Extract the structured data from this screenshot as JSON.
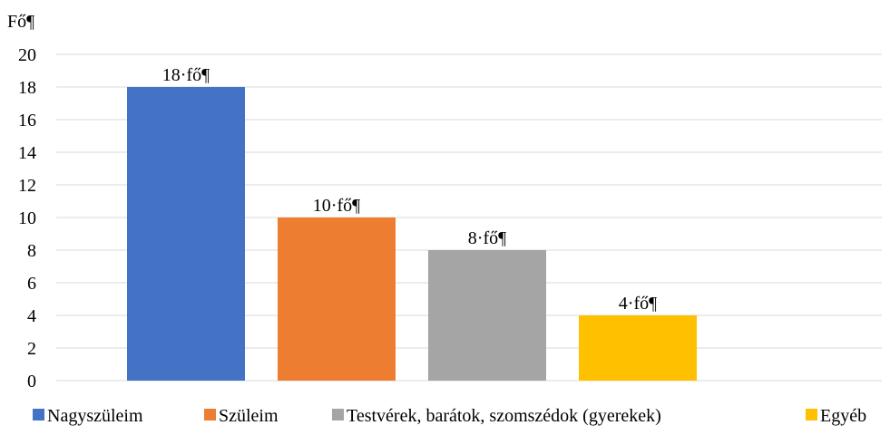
{
  "chart_data": {
    "type": "bar",
    "title": "",
    "ylabel": "Fő¶",
    "xlabel": "",
    "categories": [
      "Nagyszüleim",
      "Szüleim",
      "Testvérek, barátok, szomszédok (gyerekek)",
      "Egyéb"
    ],
    "values": [
      18,
      10,
      8,
      4
    ],
    "data_labels": [
      "18·fő¶",
      "10·fő¶",
      "8·fő¶",
      "4·fő¶"
    ],
    "colors": [
      "#4472C4",
      "#ED7D31",
      "#A5A5A5",
      "#FFC000"
    ],
    "ylim": [
      0,
      20
    ],
    "yticks": [
      0,
      2,
      4,
      6,
      8,
      10,
      12,
      14,
      16,
      18,
      20
    ],
    "grid": true,
    "legend": "bottom"
  }
}
